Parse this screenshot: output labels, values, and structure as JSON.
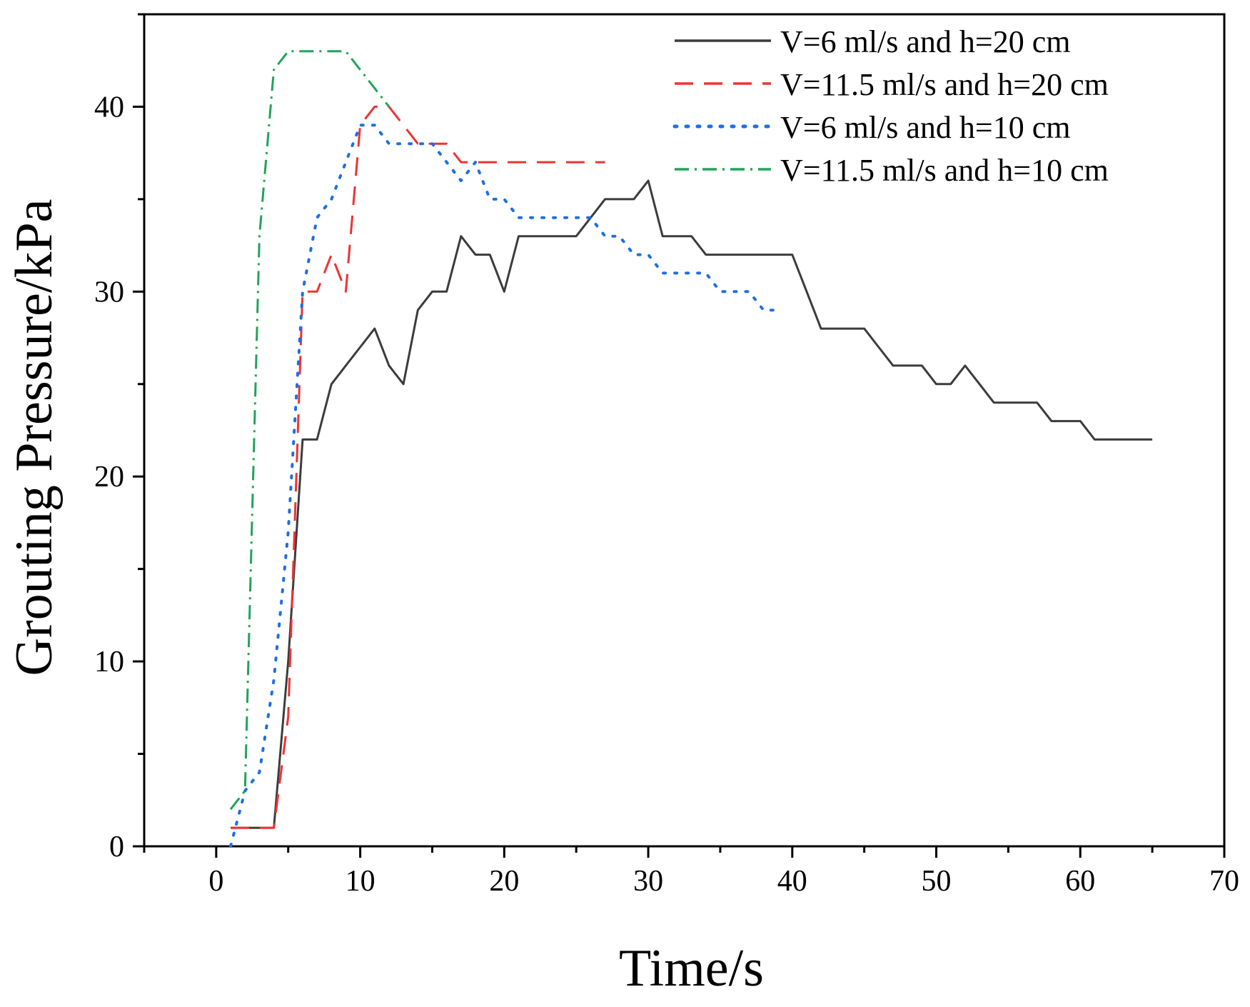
{
  "chart_data": {
    "type": "line",
    "title": "",
    "xlabel": "Time/s",
    "ylabel": "Grouting Pressure/kPa",
    "xlim": [
      -5,
      70
    ],
    "ylim": [
      0,
      45
    ],
    "x_ticks": [
      0,
      10,
      20,
      30,
      40,
      50,
      60,
      70
    ],
    "y_ticks": [
      0,
      10,
      20,
      30,
      40
    ],
    "x_tick_labels": [
      "0",
      "10",
      "20",
      "30",
      "40",
      "50",
      "60",
      "70"
    ],
    "y_tick_labels": [
      "0",
      "10",
      "20",
      "30",
      "40"
    ],
    "x_minor_step": 5,
    "y_minor_step": 5,
    "grid": false,
    "legend_position": "top-right",
    "series": [
      {
        "name": "V=6 ml/s and h=20 cm",
        "color": "#3c3c3c",
        "dash": "solid",
        "x": [
          1,
          2,
          3,
          4,
          5,
          6,
          7,
          8,
          9,
          10,
          11,
          12,
          13,
          14,
          15,
          16,
          17,
          18,
          19,
          20,
          21,
          22,
          23,
          24,
          25,
          26,
          27,
          28,
          29,
          30,
          31,
          32,
          33,
          34,
          35,
          36,
          37,
          38,
          39,
          40,
          41,
          42,
          43,
          44,
          45,
          46,
          47,
          48,
          49,
          50,
          51,
          52,
          53,
          54,
          55,
          56,
          57,
          58,
          59,
          60,
          61,
          62,
          63,
          64,
          65
        ],
        "y": [
          1,
          1,
          1,
          1,
          10,
          22,
          22,
          25,
          26,
          27,
          28,
          26,
          25,
          29,
          30,
          30,
          33,
          32,
          32,
          30,
          33,
          33,
          33,
          33,
          33,
          34,
          35,
          35,
          35,
          36,
          33,
          33,
          33,
          32,
          32,
          32,
          32,
          32,
          32,
          32,
          30,
          28,
          28,
          28,
          28,
          27,
          26,
          26,
          26,
          25,
          25,
          26,
          25,
          24,
          24,
          24,
          24,
          23,
          23,
          23,
          22,
          22,
          22,
          22,
          22
        ]
      },
      {
        "name": "V=11.5 ml/s and h=20 cm",
        "color": "#f03232",
        "dash": "dashed",
        "x": [
          1,
          2,
          3,
          4,
          5,
          6,
          7,
          8,
          9,
          10,
          11,
          12,
          13,
          14,
          15,
          16,
          17,
          18,
          19,
          20,
          21,
          22,
          23,
          24,
          25,
          26,
          27
        ],
        "y": [
          1,
          1,
          1,
          1,
          7,
          30,
          30,
          32,
          30,
          39,
          40,
          40,
          39,
          38,
          38,
          38,
          37,
          37,
          37,
          37,
          37,
          37,
          37,
          37,
          37,
          37,
          37
        ]
      },
      {
        "name": "V=6 ml/s and h=10 cm",
        "color": "#1e6ee6",
        "dash": "dotted",
        "x": [
          1,
          2,
          3,
          4,
          5,
          6,
          7,
          8,
          9,
          10,
          11,
          12,
          13,
          14,
          15,
          16,
          17,
          18,
          19,
          20,
          21,
          22,
          23,
          24,
          25,
          26,
          27,
          28,
          29,
          30,
          31,
          32,
          33,
          34,
          35,
          36,
          37,
          38,
          39
        ],
        "y": [
          0,
          3,
          4,
          9,
          17,
          30,
          34,
          35,
          37,
          39,
          39,
          38,
          38,
          38,
          38,
          37,
          36,
          37,
          35,
          35,
          34,
          34,
          34,
          34,
          34,
          34,
          33,
          33,
          32,
          32,
          31,
          31,
          31,
          31,
          30,
          30,
          30,
          29,
          29
        ]
      },
      {
        "name": "V=11.5 ml/s and h=10 cm",
        "color": "#21a35a",
        "dash": "dash-dot",
        "x": [
          1,
          2,
          3,
          4,
          5,
          6,
          7,
          8,
          9,
          10,
          11,
          12
        ],
        "y": [
          2,
          3,
          33,
          42,
          43,
          43,
          43,
          43,
          43,
          42,
          41,
          40
        ]
      }
    ]
  }
}
